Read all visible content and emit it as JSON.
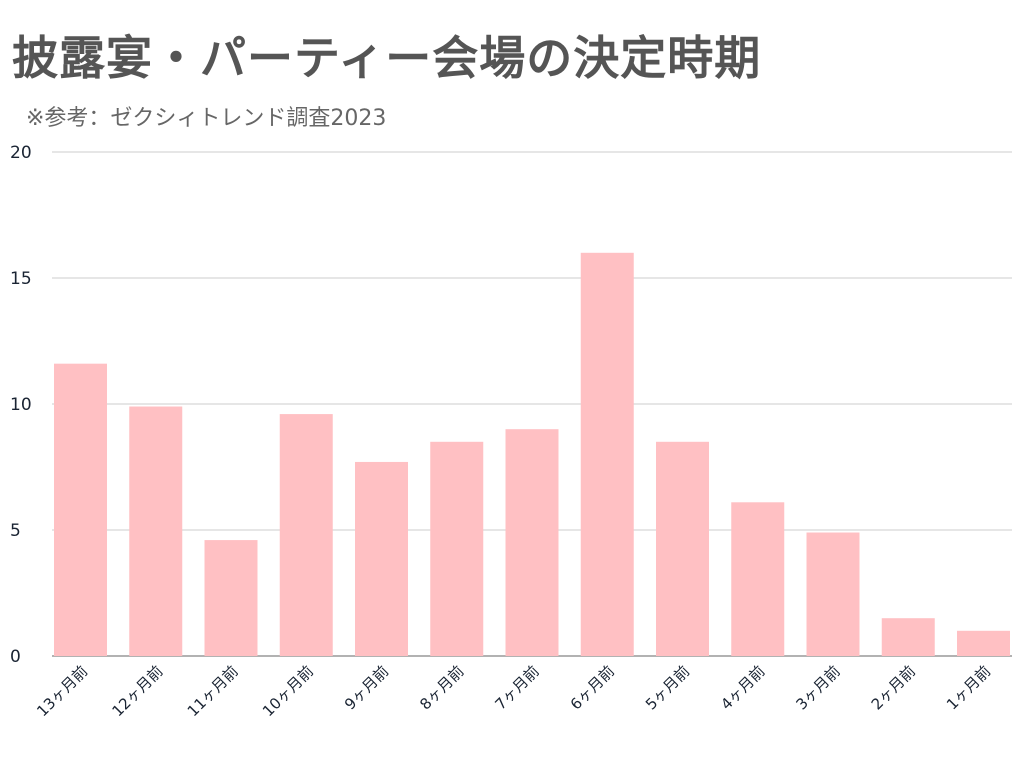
{
  "chart_data": {
    "type": "bar",
    "title": "披露宴・パーティー会場の決定時期",
    "subtitle": "※参考：ゼクシィトレンド調査2023",
    "xlabel": "",
    "ylabel": "",
    "ylim": [
      0,
      20
    ],
    "yticks": [
      "0",
      "5",
      "10",
      "15",
      "20"
    ],
    "grid": true,
    "categories": [
      "13ヶ月前",
      "12ヶ月前",
      "11ヶ月前",
      "10ヶ月前",
      "9ヶ月前",
      "8ヶ月前",
      "7ヶ月前",
      "6ヶ月前",
      "5ヶ月前",
      "4ヶ月前",
      "3ヶ月前",
      "2ヶ月前",
      "1ヶ月前"
    ],
    "values": [
      11.6,
      9.9,
      4.6,
      9.6,
      7.7,
      8.5,
      9.0,
      16.0,
      8.5,
      6.1,
      4.9,
      1.5,
      1.0
    ],
    "bar_color": "#ffc0c3"
  }
}
